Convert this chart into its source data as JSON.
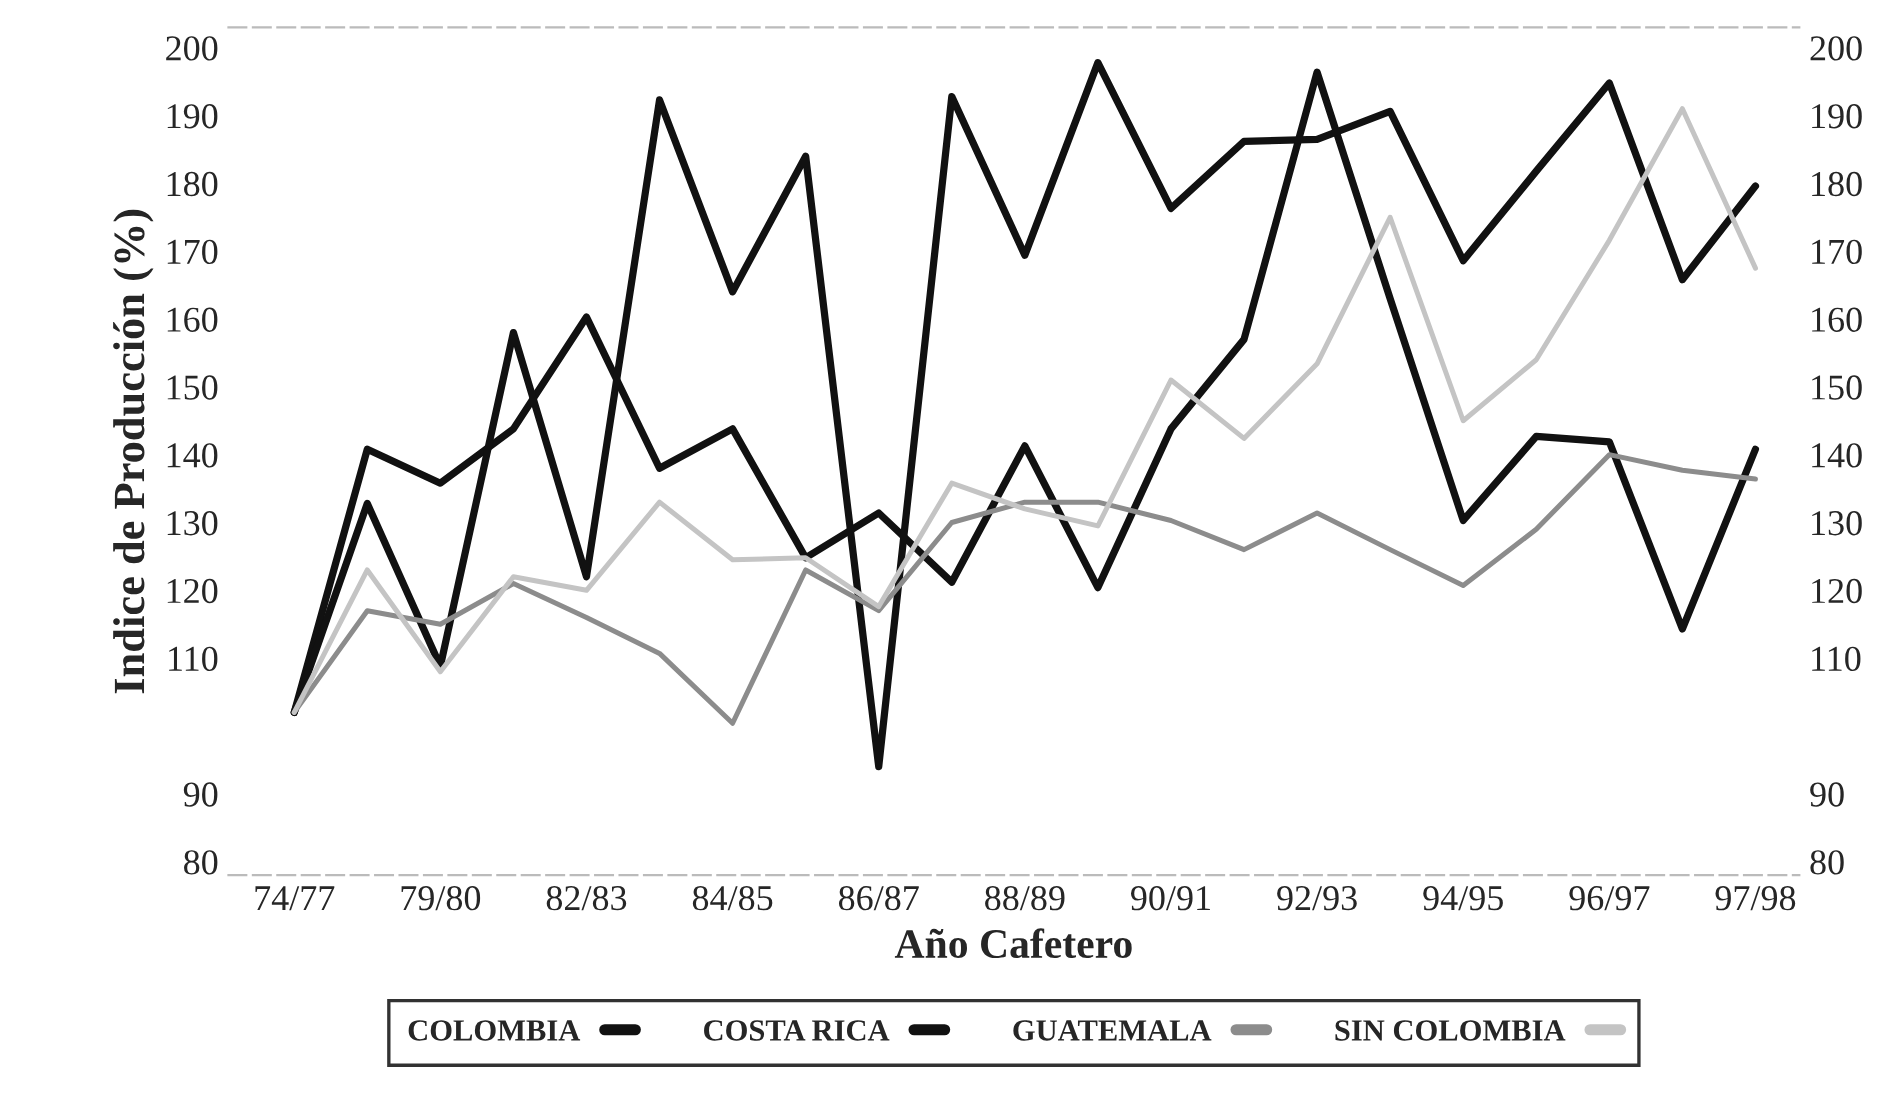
{
  "chart_data": {
    "type": "line",
    "xlabel": "Año Cafetero",
    "ylabel": "Indice de Producción (%)",
    "categories": [
      "74/77",
      null,
      "79/80",
      null,
      "82/83",
      null,
      "84/85",
      null,
      "86/87",
      null,
      "88/89",
      null,
      "90/91",
      null,
      "92/93",
      null,
      "94/95",
      null,
      "96/97",
      null,
      "97/98"
    ],
    "ylim": [
      78,
      203
    ],
    "yticks": [
      80,
      90,
      110,
      120,
      130,
      140,
      150,
      160,
      170,
      180,
      190,
      200
    ],
    "y2lim": [
      78,
      203
    ],
    "y2ticks": [
      80,
      90,
      110,
      120,
      130,
      140,
      150,
      160,
      170,
      180,
      190,
      200
    ],
    "series": [
      {
        "name": "COLOMBIA",
        "color": "#111111",
        "values": [
          102,
          140.8,
          135.8,
          143.8,
          160.3,
          138,
          143.8,
          124.8,
          131.4,
          121.2,
          141.3,
          120.4,
          143.8,
          157,
          196.4,
          163,
          130.3,
          142.7,
          141.9,
          114.3,
          140.8
        ]
      },
      {
        "name": "COSTA RICA",
        "color": "#111111",
        "values": [
          102,
          132.8,
          108.8,
          158,
          122,
          192.3,
          164,
          184,
          94,
          192.8,
          169.4,
          197.8,
          176.3,
          186.2,
          186.5,
          190.6,
          168.6,
          181.8,
          194.8,
          165.8,
          179.6
        ]
      },
      {
        "name": "GUATEMALA",
        "color": "#8c8c8c",
        "values": [
          102,
          117,
          115,
          121,
          116,
          110.7,
          100.4,
          123,
          117,
          130,
          133,
          133,
          130.3,
          126,
          131.4,
          126,
          120.7,
          129,
          140,
          137.7,
          136.4
        ]
      },
      {
        "name": "SIN COLOMBIA",
        "color": "#c4c4c4",
        "values": [
          102,
          123,
          108,
          122,
          120,
          133,
          124.5,
          124.8,
          117.6,
          135.8,
          132,
          129.5,
          151,
          142.4,
          153.4,
          175,
          145,
          154,
          171.6,
          191,
          167.5
        ]
      }
    ],
    "legend": "bottom",
    "grid": false,
    "marker": "none",
    "line_style": "solid"
  }
}
